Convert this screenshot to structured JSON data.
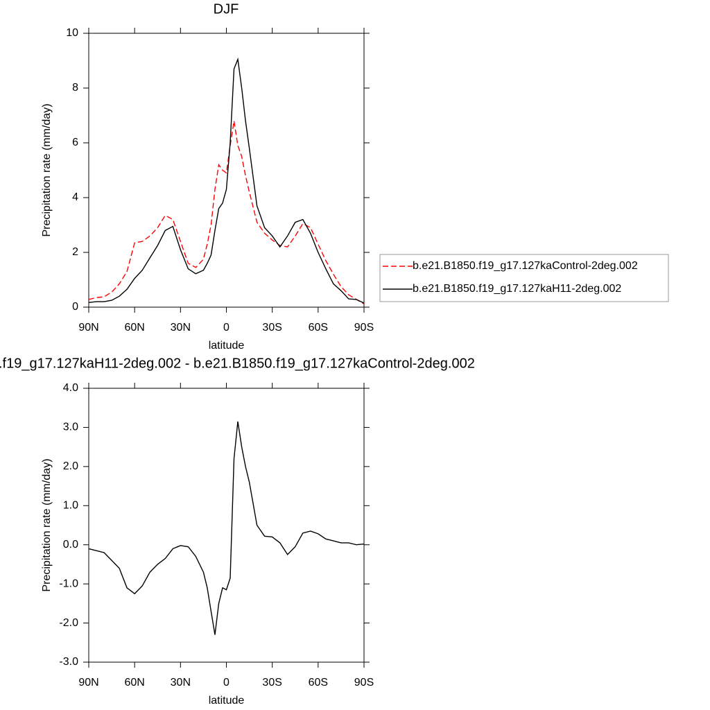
{
  "chart_data": [
    {
      "type": "line",
      "title": "DJF",
      "xlabel": "latitude",
      "ylabel": "Precipitation rate (mm/day)",
      "x": [
        90,
        85,
        80,
        75,
        70,
        65,
        60,
        55,
        50,
        45,
        40,
        35,
        30,
        25,
        20,
        15,
        12.5,
        10,
        7.5,
        5,
        2.5,
        0,
        -2.5,
        -5,
        -7.5,
        -10,
        -12.5,
        -15,
        -20,
        -25,
        -30,
        -35,
        -40,
        -45,
        -50,
        -55,
        -60,
        -65,
        -70,
        -75,
        -80,
        -85,
        -90
      ],
      "series": [
        {
          "name": "b.e21.B1850.f19_g17.127kaControl-2deg.002",
          "color": "#ff0000",
          "style": "dashed",
          "values": [
            0.28,
            0.35,
            0.38,
            0.55,
            0.85,
            1.3,
            2.35,
            2.4,
            2.6,
            2.9,
            3.35,
            3.2,
            2.4,
            1.6,
            1.45,
            1.75,
            2.3,
            3.0,
            4.3,
            5.2,
            5.0,
            4.9,
            5.9,
            6.8,
            5.9,
            5.5,
            4.8,
            4.2,
            3.1,
            2.7,
            2.45,
            2.25,
            2.2,
            2.6,
            3.05,
            2.9,
            2.3,
            1.7,
            1.2,
            0.75,
            0.45,
            0.28,
            0.12
          ]
        },
        {
          "name": "b.e21.B1850.f19_g17.127kaH11-2deg.002",
          "color": "#000000",
          "style": "solid",
          "values": [
            0.17,
            0.2,
            0.2,
            0.25,
            0.4,
            0.65,
            1.05,
            1.35,
            1.8,
            2.25,
            2.8,
            2.95,
            2.1,
            1.4,
            1.22,
            1.35,
            1.6,
            1.9,
            2.8,
            3.6,
            3.8,
            4.3,
            6.0,
            8.7,
            9.05,
            8.0,
            6.8,
            5.8,
            3.7,
            2.9,
            2.6,
            2.2,
            2.6,
            3.1,
            3.2,
            2.7,
            2.0,
            1.4,
            0.85,
            0.6,
            0.3,
            0.28,
            0.15
          ]
        }
      ],
      "xlim": [
        90,
        -90
      ],
      "xticks": [
        {
          "value": 90,
          "label": "90N"
        },
        {
          "value": 60,
          "label": "60N"
        },
        {
          "value": 30,
          "label": "30N"
        },
        0,
        {
          "value": -30,
          "label": "30S"
        },
        {
          "value": -60,
          "label": "60S"
        },
        {
          "value": -90,
          "label": "90S"
        }
      ],
      "ylim": [
        0,
        10
      ],
      "yticks": [
        0,
        2,
        4,
        6,
        8,
        10
      ],
      "legend": "right"
    },
    {
      "type": "line",
      "title": ".f19_g17.127kaH11-2deg.002 - b.e21.B1850.f19_g17.127kaControl-2deg.002",
      "xlabel": "latitude",
      "ylabel": "Precipitation rate (mm/day)",
      "x": [
        90,
        85,
        80,
        75,
        70,
        65,
        60,
        55,
        50,
        45,
        40,
        35,
        30,
        25,
        20,
        15,
        12.5,
        10,
        7.5,
        5,
        2.5,
        0,
        -2.5,
        -5,
        -7.5,
        -10,
        -12.5,
        -15,
        -20,
        -25,
        -30,
        -35,
        -40,
        -45,
        -50,
        -55,
        -60,
        -65,
        -70,
        -75,
        -80,
        -85,
        -90
      ],
      "series": [
        {
          "color": "#000000",
          "style": "solid",
          "values": [
            -0.1,
            -0.15,
            -0.2,
            -0.4,
            -0.6,
            -1.1,
            -1.25,
            -1.05,
            -0.7,
            -0.5,
            -0.35,
            -0.1,
            -0.02,
            -0.05,
            -0.3,
            -0.7,
            -1.1,
            -1.7,
            -2.3,
            -1.5,
            -1.1,
            -1.15,
            -0.85,
            2.2,
            3.15,
            2.5,
            2.0,
            1.6,
            0.5,
            0.22,
            0.2,
            0.05,
            -0.25,
            -0.05,
            0.3,
            0.35,
            0.28,
            0.15,
            0.1,
            0.05,
            0.05,
            0.0,
            0.02
          ]
        }
      ],
      "xlim": [
        90,
        -90
      ],
      "xticks": [
        {
          "value": 90,
          "label": "90N"
        },
        {
          "value": 60,
          "label": "60N"
        },
        {
          "value": 30,
          "label": "30N"
        },
        0,
        {
          "value": -30,
          "label": "30S"
        },
        {
          "value": -60,
          "label": "60S"
        },
        {
          "value": -90,
          "label": "90S"
        }
      ],
      "ylim": [
        -3,
        4
      ],
      "yticks": [
        {
          "value": -3,
          "label": "-3.0"
        },
        {
          "value": -2,
          "label": "-2.0"
        },
        {
          "value": -1,
          "label": "-1.0"
        },
        {
          "value": 0,
          "label": "0.0"
        },
        {
          "value": 1,
          "label": "1.0"
        },
        {
          "value": 2,
          "label": "2.0"
        },
        {
          "value": 3,
          "label": "3.0"
        },
        {
          "value": 4,
          "label": "4.0"
        }
      ]
    }
  ]
}
